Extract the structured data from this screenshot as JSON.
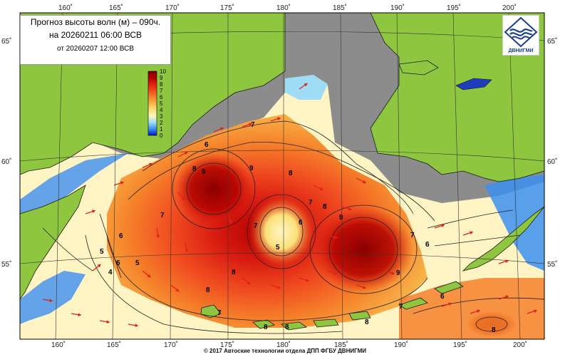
{
  "title": {
    "line1": "Прогноз высоты волн (м) – 090ч.",
    "line2": "на 20260211 06:00 ВСВ",
    "line3": "от 20260207 12:00 ВСВ"
  },
  "lon_labels": [
    "160˚",
    "165˚",
    "170˚",
    "175˚",
    "180˚",
    "185˚",
    "190˚",
    "195˚",
    "200˚"
  ],
  "lat_labels": [
    "65˚",
    "60˚",
    "55˚"
  ],
  "legend": {
    "values": [
      "10",
      "9",
      "8",
      "7",
      "6",
      "5",
      "4",
      "3",
      "2",
      "1",
      "0"
    ],
    "colors": [
      "#7a0000",
      "#b30000",
      "#e02010",
      "#f04a20",
      "#f5802a",
      "#f8b248",
      "#fbe07a",
      "#fff6c0",
      "#9fdcf5",
      "#3d8ff0",
      "#0018c8"
    ]
  },
  "contour_labels": [
    "7",
    "6",
    "8",
    "9",
    "9",
    "8",
    "7",
    "8",
    "7",
    "6",
    "5",
    "9",
    "7",
    "6",
    "5",
    "6",
    "5",
    "4",
    "8",
    "8",
    "9",
    "7",
    "6",
    "7",
    "8",
    "8",
    "6",
    "7",
    "8",
    "8"
  ],
  "logo": {
    "text": "ДВНИГМИ"
  },
  "footer": {
    "copyright": "© 2017 Автоские технологии отдела ДПП ФГБУ ДВНИГМИ"
  },
  "colors": {
    "land": "#8fc63f",
    "no_data": "#8c8c8c",
    "arrow": "#e0201a",
    "contour": "#222222"
  }
}
